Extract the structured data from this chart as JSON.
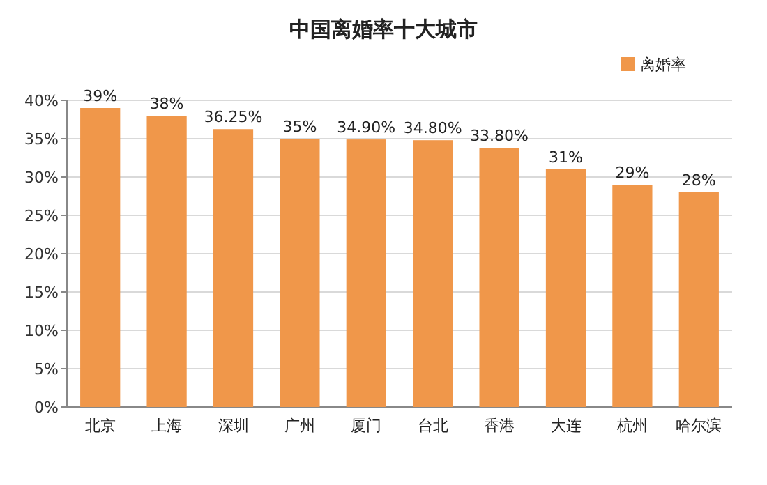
{
  "chart_data": {
    "type": "bar",
    "title": "中国离婚率十大城市",
    "categories": [
      "北京",
      "上海",
      "深圳",
      "广州",
      "厦门",
      "台北",
      "香港",
      "大连",
      "杭州",
      "哈尔滨"
    ],
    "series": [
      {
        "name": "离婚率",
        "color": "#f0974a",
        "values": [
          39,
          38,
          36.25,
          35,
          34.9,
          34.8,
          33.8,
          31,
          29,
          28
        ],
        "value_labels": [
          "39%",
          "38%",
          "36.25%",
          "35%",
          "34.90%",
          "34.80%",
          "33.80%",
          "31%",
          "29%",
          "28%"
        ]
      }
    ],
    "ylim": [
      0,
      40
    ],
    "yticks": [
      {
        "value": 0,
        "label": "0%"
      },
      {
        "value": 5,
        "label": "5%"
      },
      {
        "value": 10,
        "label": "10%"
      },
      {
        "value": 15,
        "label": "15%"
      },
      {
        "value": 20,
        "label": "20%"
      },
      {
        "value": 25,
        "label": "25%"
      },
      {
        "value": 30,
        "label": "30%"
      },
      {
        "value": 35,
        "label": "35%"
      },
      {
        "value": 40,
        "label": "40%"
      }
    ],
    "grid": "y",
    "legend": "top right"
  }
}
